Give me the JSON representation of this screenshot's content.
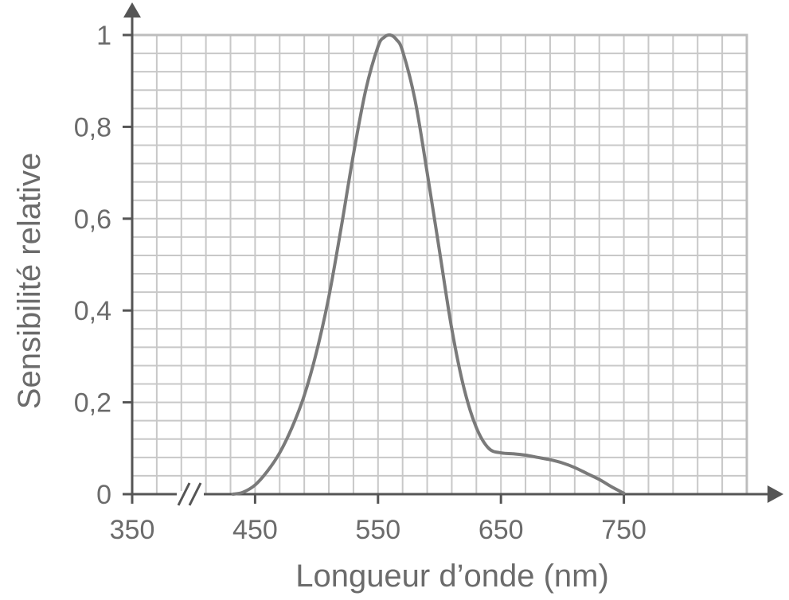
{
  "chart_data": {
    "type": "line",
    "title": "",
    "xlabel": "Longueur d’onde (nm)",
    "ylabel": "Sensibilité relative",
    "xlim": [
      350,
      850
    ],
    "ylim": [
      0,
      1
    ],
    "x_ticks": [
      350,
      450,
      550,
      650,
      750
    ],
    "x_tick_labels": [
      "350",
      "450",
      "550",
      "650",
      "750"
    ],
    "y_ticks": [
      0,
      0.2,
      0.4,
      0.6,
      0.8,
      1
    ],
    "y_tick_labels": [
      "0",
      "0,2",
      "0,4",
      "0,6",
      "0,8",
      "1"
    ],
    "x_axis_break": true,
    "grid": true,
    "series": [
      {
        "color": "#7a7a7a",
        "x": [
          432,
          440,
          450,
          460,
          470,
          480,
          490,
          500,
          510,
          520,
          530,
          540,
          550,
          555,
          560,
          565,
          570,
          580,
          590,
          600,
          610,
          620,
          630,
          640,
          650,
          660,
          670,
          680,
          690,
          700,
          710,
          720,
          730,
          740,
          750
        ],
        "y": [
          0,
          0.004,
          0.02,
          0.05,
          0.09,
          0.145,
          0.215,
          0.31,
          0.43,
          0.58,
          0.74,
          0.88,
          0.975,
          0.995,
          1.0,
          0.99,
          0.965,
          0.86,
          0.7,
          0.53,
          0.36,
          0.23,
          0.145,
          0.1,
          0.09,
          0.088,
          0.085,
          0.08,
          0.075,
          0.068,
          0.058,
          0.045,
          0.032,
          0.016,
          0.002
        ]
      }
    ]
  }
}
